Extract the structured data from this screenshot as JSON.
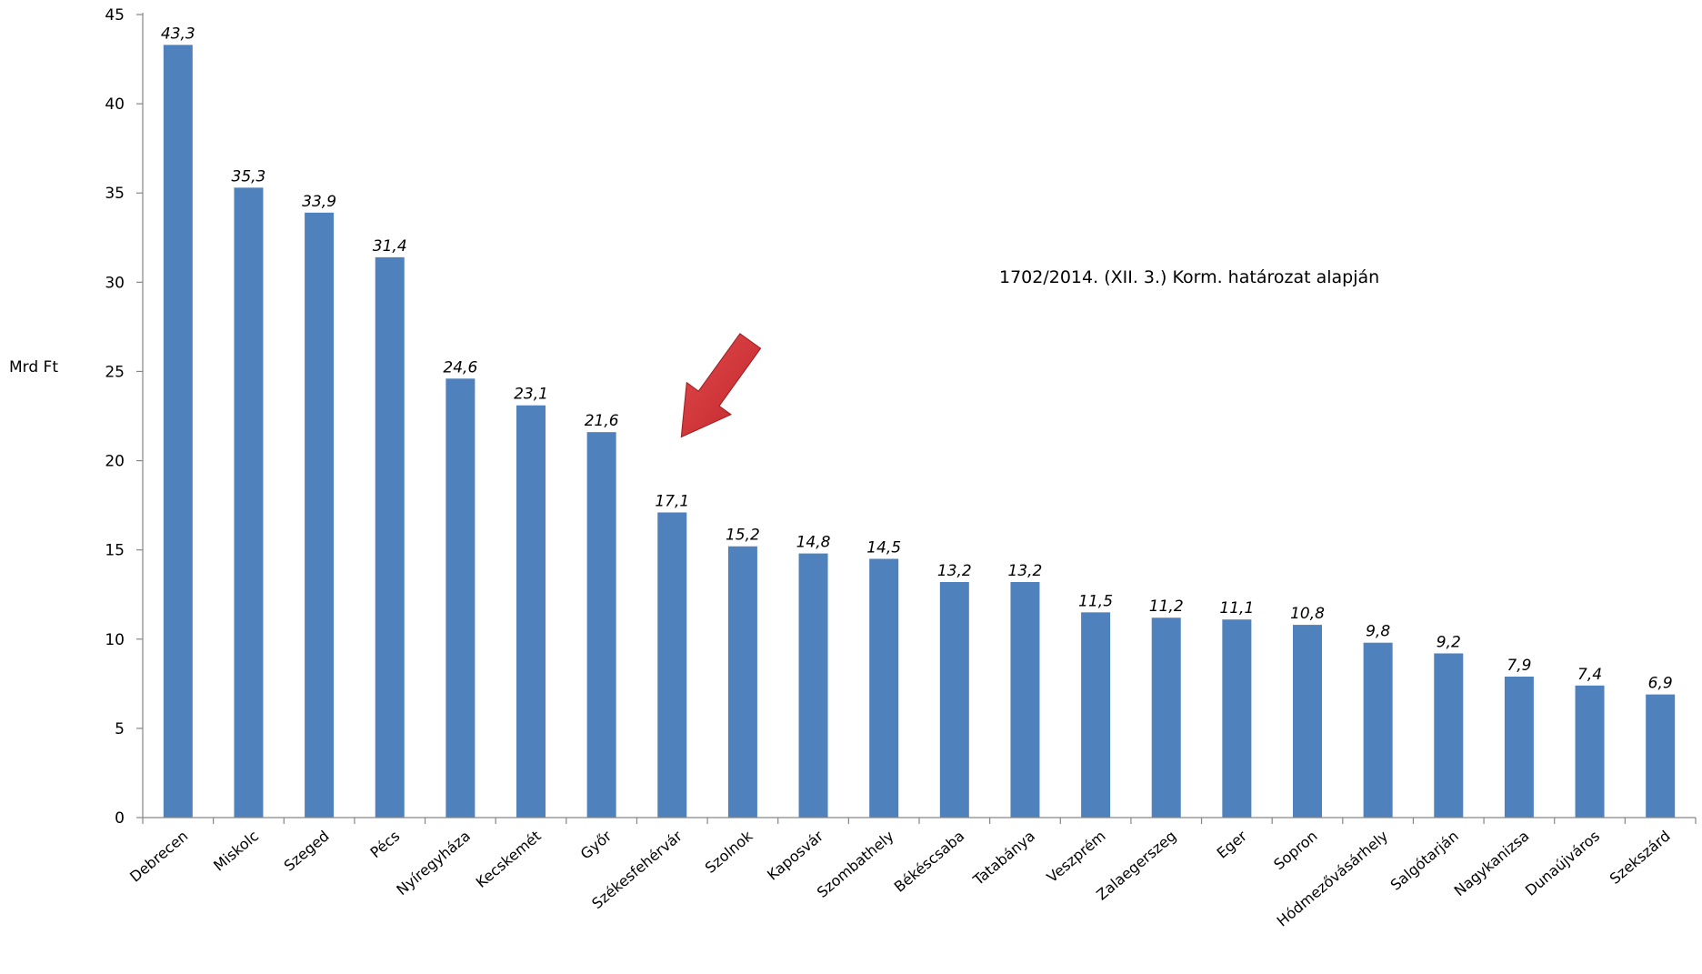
{
  "chart_data": {
    "type": "bar",
    "ylabel": "Mrd Ft",
    "xlabel": "",
    "title": "",
    "ylim": [
      0,
      45
    ],
    "yticks": [
      0,
      5,
      10,
      15,
      20,
      25,
      30,
      35,
      40,
      45
    ],
    "grid": false,
    "legend": "none",
    "bar_color": "#4F81BD",
    "annotation": "1702/2014. (XII. 3.) Korm. határozat alapján",
    "highlight_arrow_color": "#C0262A",
    "highlighted_category": "Székesfehérvár",
    "categories": [
      "Debrecen",
      "Miskolc",
      "Szeged",
      "Pécs",
      "Nyíregyháza",
      "Kecskemét",
      "Győr",
      "Székesfehérvár",
      "Szolnok",
      "Kaposvár",
      "Szombathely",
      "Békéscsaba",
      "Tatabánya",
      "Veszprém",
      "Zalaegerszeg",
      "Eger",
      "Sopron",
      "Hódmezővásárhely",
      "Salgótarján",
      "Nagykanizsa",
      "Dunaújváros",
      "Szekszárd"
    ],
    "values": [
      43.3,
      35.3,
      33.9,
      31.4,
      24.6,
      23.1,
      21.6,
      17.1,
      15.2,
      14.8,
      14.5,
      13.2,
      13.2,
      11.5,
      11.2,
      11.1,
      10.8,
      9.8,
      9.2,
      7.9,
      7.4,
      6.9
    ],
    "value_labels": [
      "43,3",
      "35,3",
      "33,9",
      "31,4",
      "24,6",
      "23,1",
      "21,6",
      "17,1",
      "15,2",
      "14,8",
      "14,5",
      "13,2",
      "13,2",
      "11,5",
      "11,2",
      "11,1",
      "10,8",
      "9,8",
      "9,2",
      "7,9",
      "7,4",
      "6,9"
    ]
  }
}
